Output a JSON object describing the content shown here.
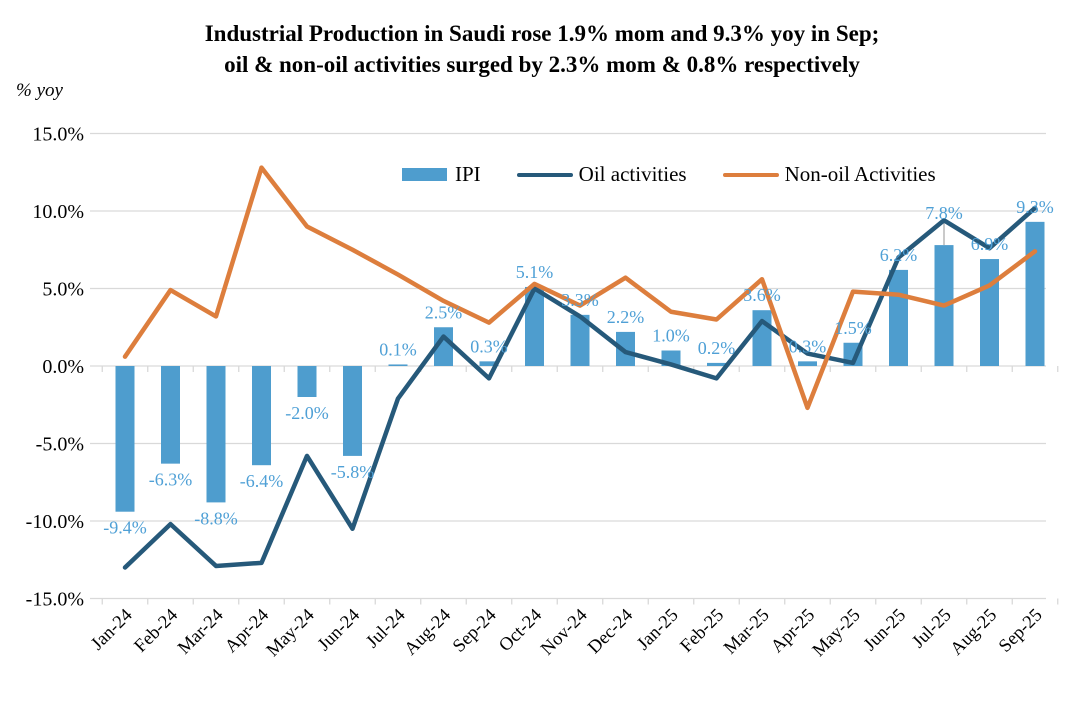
{
  "title": {
    "line1": "Industrial Production in Saudi rose 1.9% mom and 9.3% yoy in Sep;",
    "line2": "oil & non-oil activities surged by 2.3% mom & 0.8% respectively"
  },
  "y_axis": {
    "label": "% yoy",
    "ticks": [
      "15.0%",
      "10.0%",
      "5.0%",
      "0.0%",
      "-5.0%",
      "-10.0%",
      "-15.0%"
    ]
  },
  "legend": [
    {
      "label": "IPI",
      "swatch": "bar",
      "color": "#4E9DCE"
    },
    {
      "label": "Oil activities",
      "swatch": "line",
      "color": "#26597A"
    },
    {
      "label": "Non-oil Activities",
      "swatch": "line",
      "color": "#DD7E3D"
    }
  ],
  "colors": {
    "bar": "#4E9DCE",
    "oil_line": "#26597A",
    "non_oil_line": "#DD7E3D",
    "data_label": "#4FA0D6",
    "grid": "#D9D9D9",
    "axis_text": "#000000",
    "leader_line": "#A6A6A6"
  },
  "chart_data": {
    "type": "combo-bar-line",
    "categories": [
      "Jan-24",
      "Feb-24",
      "Mar-24",
      "Apr-24",
      "May-24",
      "Jun-24",
      "Jul-24",
      "Aug-24",
      "Sep-24",
      "Oct-24",
      "Nov-24",
      "Dec-24",
      "Jan-25",
      "Feb-25",
      "Mar-25",
      "Apr-25",
      "May-25",
      "Jun-25",
      "Jul-25",
      "Aug-25",
      "Sep-25"
    ],
    "series": [
      {
        "name": "IPI",
        "type": "bar",
        "values": [
          -9.4,
          -6.3,
          -8.8,
          -6.4,
          -2.0,
          -5.8,
          0.1,
          2.5,
          0.3,
          5.1,
          3.3,
          2.2,
          1.0,
          0.2,
          3.6,
          0.3,
          1.5,
          6.2,
          7.8,
          6.9,
          9.3
        ],
        "labels": [
          "-9.4%",
          "-6.3%",
          "-8.8%",
          "-6.4%",
          "-2.0%",
          "-5.8%",
          "0.1%",
          "2.5%",
          "0.3%",
          "5.1%",
          "3.3%",
          "2.2%",
          "1.0%",
          "0.2%",
          "3.6%",
          "0.3%",
          "1.5%",
          "6.2%",
          "7.8%",
          "6.9%",
          "9.3%"
        ]
      },
      {
        "name": "Oil activities",
        "type": "line",
        "values": [
          -13.0,
          -10.2,
          -12.9,
          -12.7,
          -5.8,
          -10.5,
          -2.1,
          1.9,
          -0.8,
          5.0,
          3.2,
          0.9,
          0.1,
          -0.8,
          2.9,
          0.8,
          0.2,
          7.0,
          9.4,
          7.6,
          10.2
        ]
      },
      {
        "name": "Non-oil Activities",
        "type": "line",
        "values": [
          0.6,
          4.9,
          3.2,
          12.8,
          9.0,
          7.5,
          5.9,
          4.2,
          2.8,
          5.3,
          3.9,
          5.7,
          3.5,
          3.0,
          5.6,
          -2.7,
          4.8,
          4.6,
          3.9,
          5.2,
          7.4
        ]
      }
    ],
    "ylabel": "% yoy",
    "ylim": [
      -15,
      15
    ],
    "ytick_step": 5,
    "grid": true,
    "legend_position": "top-center",
    "label_leader_category": "Jul-25"
  }
}
